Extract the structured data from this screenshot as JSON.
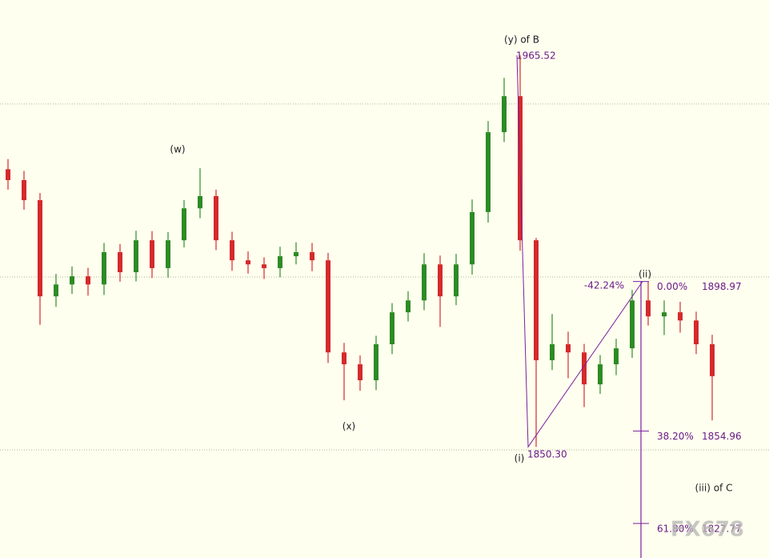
{
  "chart_data": {
    "type": "candlestick",
    "ylim": [
      1817.6,
      1981.8
    ],
    "levels": [
      1951.2,
      1900.3,
      1849.4
    ],
    "up_color": "#2e8b22",
    "down_color": "#d42a2a",
    "open": [
      1932.0,
      1928.8,
      1922.9,
      1894.6,
      1898.1,
      1900.5,
      1898.1,
      1907.6,
      1901.7,
      1911.1,
      1902.9,
      1911.1,
      1920.5,
      1924.1,
      1911.1,
      1905.2,
      1904.0,
      1902.9,
      1906.4,
      1907.6,
      1905.2,
      1878.1,
      1874.6,
      1869.9,
      1880.5,
      1889.9,
      1893.4,
      1904.0,
      1894.6,
      1904.0,
      1919.4,
      1942.9,
      1953.5,
      1911.1,
      1875.8,
      1880.5,
      1878.1,
      1868.7,
      1874.6,
      1879.3,
      1893.4,
      1888.7,
      1889.9,
      1887.5,
      1880.5
    ],
    "high": [
      1935.0,
      1931.5,
      1925.0,
      1901.2,
      1903.4,
      1903.0,
      1910.3,
      1910.0,
      1913.9,
      1913.8,
      1913.5,
      1922.9,
      1932.3,
      1926.0,
      1913.6,
      1907.8,
      1906.1,
      1909.2,
      1910.5,
      1910.3,
      1907.4,
      1880.9,
      1877.2,
      1883.0,
      1892.6,
      1896.1,
      1907.3,
      1906.6,
      1907.1,
      1923.1,
      1946.2,
      1958.9,
      1965.52,
      1911.8,
      1889.4,
      1884.2,
      1880.6,
      1877.3,
      1882.1,
      1896.5,
      1898.97,
      1893.4,
      1893.0,
      1890.1,
      1883.3
    ],
    "low": [
      1926.0,
      1920.1,
      1886.2,
      1891.5,
      1895.3,
      1894.8,
      1895.0,
      1898.9,
      1899.0,
      1900.0,
      1900.1,
      1909.0,
      1917.6,
      1908.2,
      1902.1,
      1901.3,
      1899.7,
      1900.2,
      1904.0,
      1902.0,
      1875.0,
      1864.0,
      1866.8,
      1867.0,
      1877.6,
      1887.2,
      1890.5,
      1885.6,
      1892.0,
      1901.0,
      1916.3,
      1940.0,
      1908.0,
      1850.3,
      1872.9,
      1870.5,
      1862.0,
      1865.9,
      1871.4,
      1876.5,
      1886.0,
      1883.2,
      1883.9,
      1877.6,
      1858.1
    ],
    "close": [
      1928.8,
      1922.9,
      1894.6,
      1898.1,
      1900.5,
      1898.1,
      1907.6,
      1901.7,
      1911.1,
      1902.9,
      1911.1,
      1920.5,
      1924.1,
      1911.1,
      1905.2,
      1904.0,
      1902.9,
      1906.4,
      1907.6,
      1905.2,
      1878.1,
      1874.6,
      1869.9,
      1880.5,
      1889.9,
      1893.4,
      1904.0,
      1894.6,
      1904.0,
      1919.4,
      1942.9,
      1953.5,
      1911.1,
      1875.8,
      1880.5,
      1878.1,
      1868.7,
      1874.6,
      1879.3,
      1893.4,
      1888.7,
      1889.9,
      1887.5,
      1880.5,
      1871.1
    ],
    "wave_labels": [
      "(w)",
      "(x)",
      "(y) of B",
      "(i)",
      "(ii)",
      "(iii) of C"
    ],
    "pivots": [
      {
        "value": 1965.52,
        "label": "1965.52"
      },
      {
        "value": 1850.3,
        "label": "1850.30"
      },
      {
        "value": 1898.97,
        "label": "1898.97"
      }
    ],
    "fib_extension_label": "-42.24%",
    "fib_levels": [
      {
        "ratio": {
          "value": 0,
          "label": "0.00%"
        },
        "price": {
          "value": 1898.97,
          "label": "1898.97"
        }
      },
      {
        "ratio": {
          "value": 38.2,
          "label": "38.20%"
        },
        "price": {
          "value": 1854.96,
          "label": "1854.96"
        }
      },
      {
        "ratio": {
          "value": 61.8,
          "label": "61.80%"
        },
        "price": {
          "value": 1827.77,
          "label": "1827.77"
        }
      }
    ],
    "fib_color": "#7a1f9e",
    "watermark": "FX678"
  }
}
